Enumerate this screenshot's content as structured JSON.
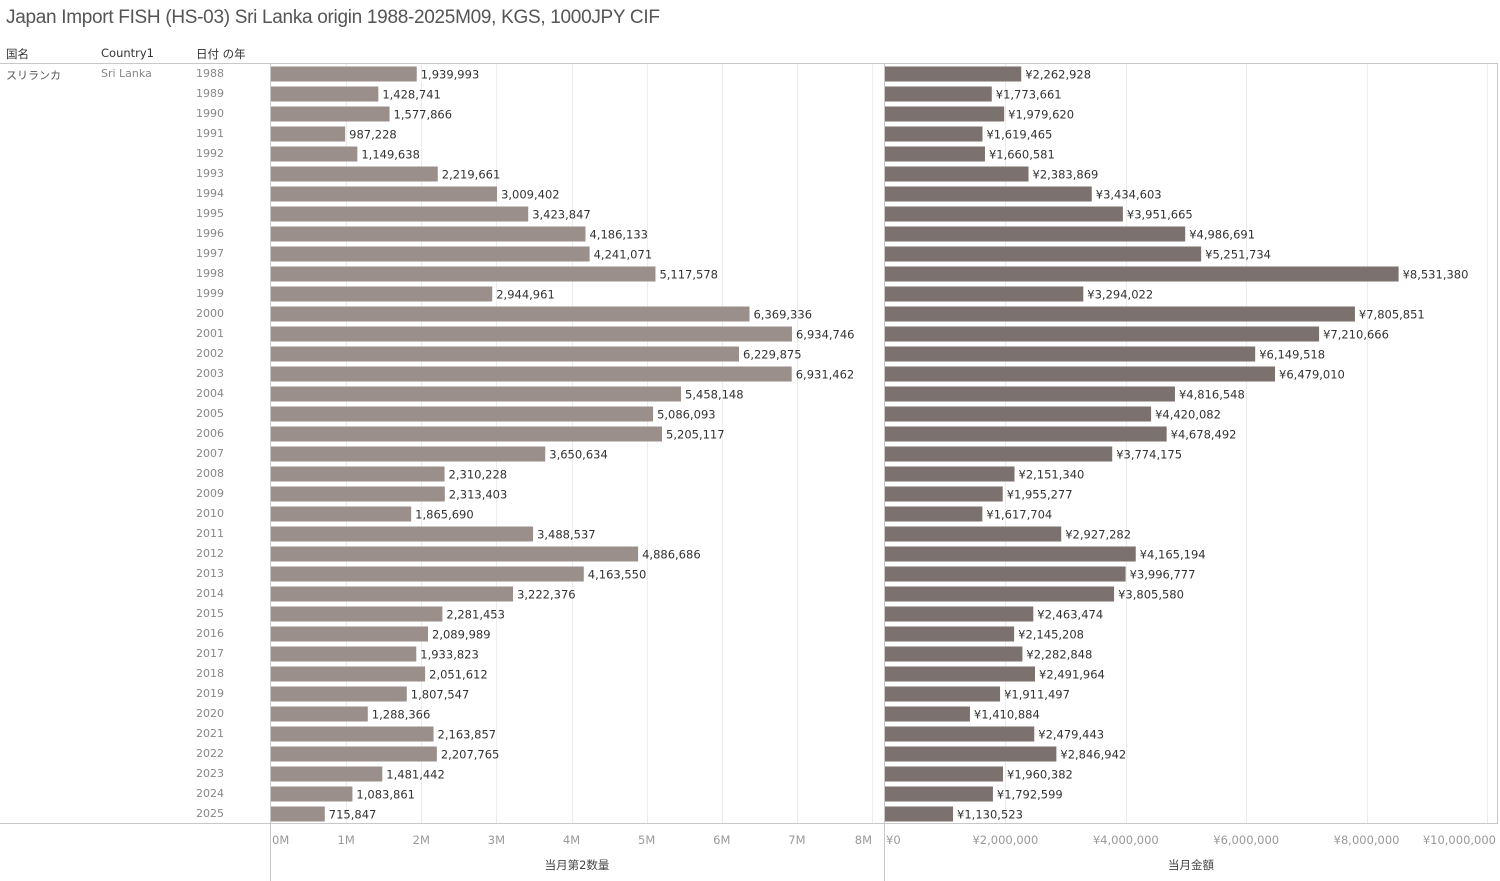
{
  "title": "Japan Import FISH (HS-03) Sri Lanka origin 1988-2025M09, KGS, 1000JPY CIF",
  "headers": {
    "col1": "国名",
    "col2": "Country1",
    "col3": "日付 の年"
  },
  "dimension": {
    "country_jp": "スリランカ",
    "country_en": "Sri Lanka"
  },
  "colors": {
    "quantity_bar": "#9a8f8b",
    "amount_bar": "#7b716e",
    "gridline": "#ececec"
  },
  "chart_data": [
    {
      "type": "bar",
      "orientation": "horizontal",
      "title": "",
      "xlabel": "当月第2数量",
      "ylabel": "日付 の年",
      "xlim": [
        0,
        8000000
      ],
      "xticks": [
        0,
        1000000,
        2000000,
        3000000,
        4000000,
        5000000,
        6000000,
        7000000,
        8000000
      ],
      "xtick_labels": [
        "0M",
        "1M",
        "2M",
        "3M",
        "4M",
        "5M",
        "6M",
        "7M",
        "8M"
      ],
      "grid": true,
      "categories": [
        "1988",
        "1989",
        "1990",
        "1991",
        "1992",
        "1993",
        "1994",
        "1995",
        "1996",
        "1997",
        "1998",
        "1999",
        "2000",
        "2001",
        "2002",
        "2003",
        "2004",
        "2005",
        "2006",
        "2007",
        "2008",
        "2009",
        "2010",
        "2011",
        "2012",
        "2013",
        "2014",
        "2015",
        "2016",
        "2017",
        "2018",
        "2019",
        "2020",
        "2021",
        "2022",
        "2023",
        "2024",
        "2025"
      ],
      "values": [
        1939993,
        1428741,
        1577866,
        987228,
        1149638,
        2219661,
        3009402,
        3423847,
        4186133,
        4241071,
        5117578,
        2944961,
        6369336,
        6934746,
        6229875,
        6931462,
        5458148,
        5086093,
        5205117,
        3650634,
        2310228,
        2313403,
        1865690,
        3488537,
        4886686,
        4163550,
        3222376,
        2281453,
        2089989,
        1933823,
        2051612,
        1807547,
        1288366,
        2163857,
        2207765,
        1481442,
        1083861,
        715847
      ],
      "labels": [
        "1,939,993",
        "1,428,741",
        "1,577,866",
        "987,228",
        "1,149,638",
        "2,219,661",
        "3,009,402",
        "3,423,847",
        "4,186,133",
        "4,241,071",
        "5,117,578",
        "2,944,961",
        "6,369,336",
        "6,934,746",
        "6,229,875",
        "6,931,462",
        "5,458,148",
        "5,086,093",
        "5,205,117",
        "3,650,634",
        "2,310,228",
        "2,313,403",
        "1,865,690",
        "3,488,537",
        "4,886,686",
        "4,163,550",
        "3,222,376",
        "2,281,453",
        "2,089,989",
        "1,933,823",
        "2,051,612",
        "1,807,547",
        "1,288,366",
        "2,163,857",
        "2,207,765",
        "1,481,442",
        "1,083,861",
        "715,847"
      ]
    },
    {
      "type": "bar",
      "orientation": "horizontal",
      "title": "",
      "xlabel": "当月金額",
      "ylabel": "日付 の年",
      "xlim": [
        0,
        10000000
      ],
      "xticks": [
        0,
        2000000,
        4000000,
        6000000,
        8000000,
        10000000
      ],
      "xtick_labels": [
        "¥0",
        "¥2,000,000",
        "¥4,000,000",
        "¥6,000,000",
        "¥8,000,000",
        "¥10,000,000"
      ],
      "grid": true,
      "categories": [
        "1988",
        "1989",
        "1990",
        "1991",
        "1992",
        "1993",
        "1994",
        "1995",
        "1996",
        "1997",
        "1998",
        "1999",
        "2000",
        "2001",
        "2002",
        "2003",
        "2004",
        "2005",
        "2006",
        "2007",
        "2008",
        "2009",
        "2010",
        "2011",
        "2012",
        "2013",
        "2014",
        "2015",
        "2016",
        "2017",
        "2018",
        "2019",
        "2020",
        "2021",
        "2022",
        "2023",
        "2024",
        "2025"
      ],
      "values": [
        2262928,
        1773661,
        1979620,
        1619465,
        1660581,
        2383869,
        3434603,
        3951665,
        4986691,
        5251734,
        8531380,
        3294022,
        7805851,
        7210666,
        6149518,
        6479010,
        4816548,
        4420082,
        4678492,
        3774175,
        2151340,
        1955277,
        1617704,
        2927282,
        4165194,
        3996777,
        3805580,
        2463474,
        2145208,
        2282848,
        2491964,
        1911497,
        1410884,
        2479443,
        2846942,
        1960382,
        1792599,
        1130523
      ],
      "labels": [
        "¥2,262,928",
        "¥1,773,661",
        "¥1,979,620",
        "¥1,619,465",
        "¥1,660,581",
        "¥2,383,869",
        "¥3,434,603",
        "¥3,951,665",
        "¥4,986,691",
        "¥5,251,734",
        "¥8,531,380",
        "¥3,294,022",
        "¥7,805,851",
        "¥7,210,666",
        "¥6,149,518",
        "¥6,479,010",
        "¥4,816,548",
        "¥4,420,082",
        "¥4,678,492",
        "¥3,774,175",
        "¥2,151,340",
        "¥1,955,277",
        "¥1,617,704",
        "¥2,927,282",
        "¥4,165,194",
        "¥3,996,777",
        "¥3,805,580",
        "¥2,463,474",
        "¥2,145,208",
        "¥2,282,848",
        "¥2,491,964",
        "¥1,911,497",
        "¥1,410,884",
        "¥2,479,443",
        "¥2,846,942",
        "¥1,960,382",
        "¥1,792,599",
        "¥1,130,523"
      ]
    }
  ]
}
